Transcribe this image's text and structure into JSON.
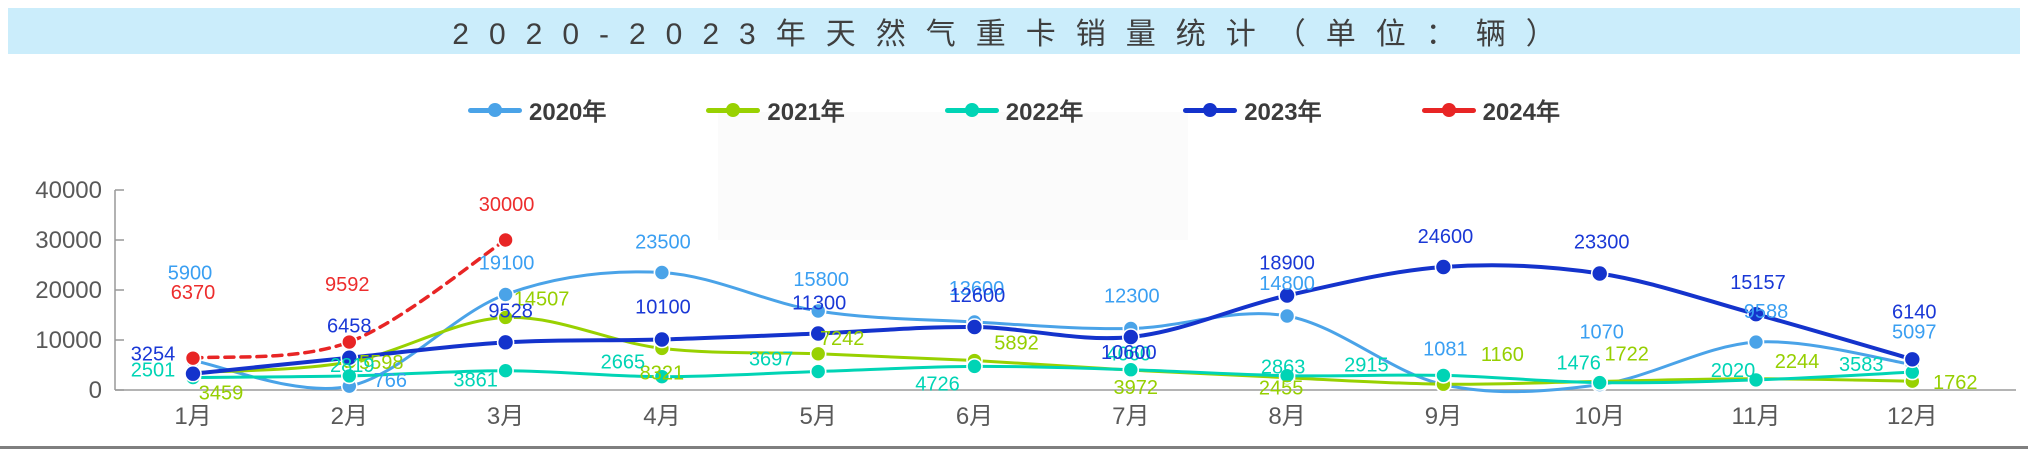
{
  "title": "2020-2023年天然气重卡销量统计（单位：辆）",
  "chart_data": {
    "type": "line",
    "title": "2020-2023年天然气重卡销量统计（单位：辆）",
    "categories": [
      "1月",
      "2月",
      "3月",
      "4月",
      "5月",
      "6月",
      "7月",
      "8月",
      "9月",
      "10月",
      "11月",
      "12月"
    ],
    "y_axis": {
      "min": 0,
      "max": 40000,
      "step": 10000,
      "tick_labels": [
        "0",
        "10000",
        "20000",
        "30000",
        "40000"
      ]
    },
    "legend_position": "top",
    "grid": false,
    "series": [
      {
        "name": "2020年",
        "color": "#4aa3e8",
        "label_color": "#3a9ff2",
        "line_width": 3,
        "dashed": false,
        "values": [
          5900,
          766,
          19100,
          23500,
          15800,
          13600,
          12300,
          14800,
          1081,
          1070,
          9588,
          5097
        ],
        "label_offsets": [
          [
            -3,
            -88
          ],
          [
            41,
            -6
          ],
          [
            1,
            -32
          ],
          [
            1,
            -31
          ],
          [
            3,
            -32
          ],
          [
            2,
            -34
          ],
          [
            1,
            -33
          ],
          [
            0,
            -33
          ],
          [
            2,
            -36
          ],
          [
            2,
            -53
          ],
          [
            10,
            -31
          ],
          [
            2,
            -33
          ]
        ]
      },
      {
        "name": "2021年",
        "color": "#98d101",
        "label_color": "#96cf01",
        "line_width": 3,
        "dashed": false,
        "values": [
          3459,
          5598,
          14507,
          8321,
          7242,
          5892,
          3972,
          2455,
          1160,
          1722,
          2244,
          1762
        ],
        "label_offsets": [
          [
            28,
            20
          ],
          [
            32,
            0
          ],
          [
            36,
            -19
          ],
          [
            0,
            24
          ],
          [
            24,
            -16
          ],
          [
            42,
            -18
          ],
          [
            5,
            17
          ],
          [
            -6,
            10
          ],
          [
            59,
            -30
          ],
          [
            27,
            -28
          ],
          [
            41,
            -18
          ],
          [
            43,
            1
          ]
        ]
      },
      {
        "name": "2022年",
        "color": "#00d4b5",
        "label_color": "#00d4b5",
        "line_width": 3,
        "dashed": false,
        "values": [
          2501,
          2819,
          3861,
          2665,
          3697,
          4726,
          4060,
          2863,
          2915,
          1476,
          2020,
          3583
        ],
        "label_offsets": [
          [
            -40,
            -8
          ],
          [
            3,
            -11
          ],
          [
            -30,
            9
          ],
          [
            -39,
            -15
          ],
          [
            -47,
            -13
          ],
          [
            -37,
            17
          ],
          [
            -2,
            -16
          ],
          [
            -4,
            -9
          ],
          [
            -77,
            -11
          ],
          [
            -21,
            -20
          ],
          [
            -23,
            -10
          ],
          [
            -51,
            -8
          ]
        ]
      },
      {
        "name": "2023年",
        "color": "#1433cc",
        "label_color": "#1a38d6",
        "line_width": 4,
        "dashed": false,
        "values": [
          3254,
          6458,
          9528,
          10100,
          11300,
          12600,
          10600,
          18900,
          24600,
          23300,
          15157,
          6140
        ],
        "label_offsets": [
          [
            -40,
            -20
          ],
          [
            0,
            -32
          ],
          [
            5,
            -32
          ],
          [
            1,
            -33
          ],
          [
            1,
            -31
          ],
          [
            3,
            -32
          ],
          [
            -2,
            15
          ],
          [
            0,
            -33
          ],
          [
            2,
            -31
          ],
          [
            2,
            -32
          ],
          [
            2,
            -32
          ],
          [
            2,
            -48
          ]
        ]
      },
      {
        "name": "2024年",
        "color": "#e82525",
        "label_color": "#ed2d2d",
        "line_width": 3.5,
        "dashed": true,
        "values": [
          6370,
          9592,
          30000,
          null,
          null,
          null,
          null,
          null,
          null,
          null,
          null,
          null
        ],
        "label_offsets": [
          [
            0,
            -66
          ],
          [
            -2,
            -58
          ],
          [
            1,
            -36
          ]
        ]
      }
    ]
  }
}
